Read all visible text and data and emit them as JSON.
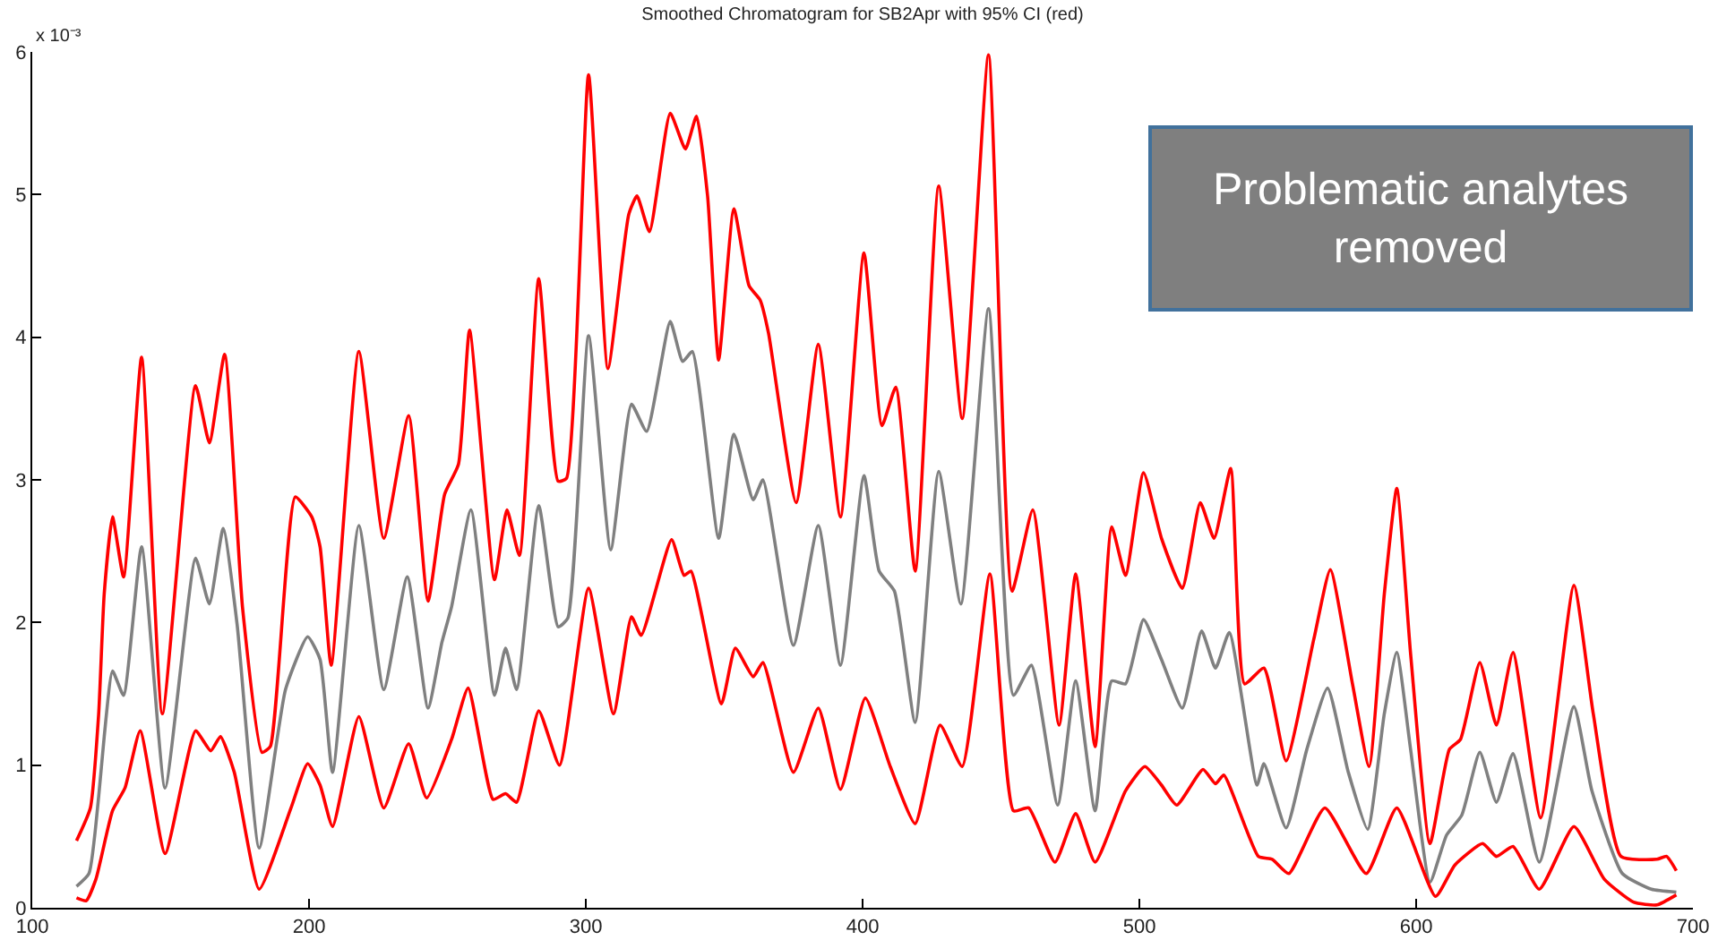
{
  "chart_data": {
    "type": "line",
    "title": "Smoothed Chromatogram for SB2Apr with 95% CI (red)",
    "ylabel": "x 10⁻³",
    "annotations": [
      "Problematic analytes removed"
    ],
    "xlim": [
      100,
      700
    ],
    "xticks": [
      100,
      200,
      300,
      400,
      500,
      600,
      700
    ],
    "ylim": [
      0,
      6
    ],
    "yticks": [
      0,
      1,
      2,
      3,
      4,
      5,
      6
    ],
    "grid": false,
    "line_style": "solid",
    "marker": "none",
    "series": [
      {
        "color": "#ff0000",
        "x": [
          116,
          121,
          124,
          126,
          129,
          133,
          139.5,
          147,
          159,
          164,
          169.5,
          176,
          183,
          186,
          195,
          201,
          204,
          208,
          218,
          227,
          236,
          243,
          249,
          254,
          258,
          267,
          271.5,
          276,
          283,
          290,
          293,
          301,
          308,
          315.5,
          318.5,
          323,
          330.5,
          336,
          340,
          344,
          348,
          353.5,
          359,
          363,
          366,
          376,
          384,
          392,
          400.5,
          407,
          412,
          419,
          427.5,
          436,
          445.5,
          454,
          461.5,
          471,
          477,
          484,
          490,
          495,
          501.5,
          508,
          515.5,
          522,
          527,
          533,
          538,
          545,
          553,
          563,
          569,
          577,
          583,
          588.5,
          593,
          598,
          605,
          612,
          616,
          623,
          629,
          635,
          645,
          657,
          664,
          674,
          687,
          690.5,
          694
        ],
        "values": [
          0.47,
          0.7,
          1.36,
          2.2,
          2.74,
          2.32,
          3.86,
          1.36,
          3.66,
          3.26,
          3.88,
          2.1,
          1.09,
          1.13,
          2.88,
          2.74,
          2.53,
          1.7,
          3.9,
          2.59,
          3.45,
          2.15,
          2.9,
          3.11,
          4.05,
          2.3,
          2.79,
          2.47,
          4.41,
          2.99,
          3.01,
          5.84,
          3.78,
          4.86,
          4.99,
          4.74,
          5.57,
          5.32,
          5.55,
          4.99,
          3.84,
          4.9,
          4.36,
          4.26,
          4.03,
          2.84,
          3.95,
          2.74,
          4.59,
          3.38,
          3.65,
          2.36,
          5.06,
          3.43,
          5.98,
          2.22,
          2.79,
          1.28,
          2.34,
          1.13,
          2.67,
          2.33,
          3.05,
          2.59,
          2.24,
          2.84,
          2.59,
          3.08,
          1.57,
          1.68,
          1.03,
          1.88,
          2.37,
          1.57,
          0.99,
          2.2,
          2.94,
          1.78,
          0.45,
          1.11,
          1.18,
          1.72,
          1.28,
          1.79,
          0.63,
          2.26,
          1.36,
          0.36,
          0.34,
          0.36,
          0.26
        ]
      },
      {
        "color": "#808080",
        "x": [
          116,
          120.5,
          124,
          126,
          129,
          133,
          139.5,
          148,
          159,
          164,
          169,
          174,
          182,
          191.5,
          199.5,
          204,
          208.5,
          218,
          227,
          235.5,
          243,
          248,
          251.5,
          258.5,
          267,
          271,
          275,
          283,
          290,
          293.5,
          301,
          309,
          316.5,
          322,
          330.5,
          335,
          338.5,
          348,
          353.5,
          360.5,
          364,
          375,
          384,
          392,
          400.5,
          406,
          411.5,
          419,
          427.5,
          435.5,
          445.5,
          454.5,
          461,
          470.5,
          477,
          484,
          490,
          495,
          501.5,
          508,
          515.5,
          522.5,
          527.5,
          532.5,
          542.5,
          545,
          553,
          560.5,
          568,
          575.5,
          582.5,
          588.5,
          593,
          598,
          605,
          611,
          616.5,
          623,
          629,
          635,
          644.5,
          657,
          663.5,
          674.5,
          685,
          694
        ],
        "values": [
          0.15,
          0.24,
          0.78,
          1.2,
          1.66,
          1.49,
          2.53,
          0.84,
          2.45,
          2.13,
          2.66,
          1.99,
          0.42,
          1.53,
          1.9,
          1.74,
          0.95,
          2.68,
          1.53,
          2.32,
          1.4,
          1.86,
          2.11,
          2.79,
          1.49,
          1.82,
          1.53,
          2.82,
          1.97,
          2.03,
          4.01,
          2.51,
          3.53,
          3.34,
          4.11,
          3.83,
          3.9,
          2.59,
          3.32,
          2.86,
          3.0,
          1.84,
          2.68,
          1.7,
          3.03,
          2.36,
          2.22,
          1.3,
          3.06,
          2.13,
          4.2,
          1.49,
          1.7,
          0.72,
          1.59,
          0.68,
          1.59,
          1.57,
          2.02,
          1.74,
          1.4,
          1.94,
          1.68,
          1.93,
          0.86,
          1.01,
          0.56,
          1.11,
          1.54,
          0.95,
          0.55,
          1.36,
          1.79,
          1.11,
          0.18,
          0.51,
          0.65,
          1.09,
          0.74,
          1.08,
          0.32,
          1.41,
          0.82,
          0.24,
          0.13,
          0.11
        ]
      },
      {
        "color": "#ff0000",
        "x": [
          116,
          119.5,
          123,
          129,
          133.5,
          139,
          148,
          159,
          164.5,
          168,
          173,
          182,
          193.5,
          199.5,
          204,
          208.5,
          218,
          227,
          236,
          242.5,
          251.5,
          257.5,
          266.5,
          271,
          275,
          283,
          290.5,
          301,
          310,
          316.5,
          320,
          331,
          335.5,
          338,
          349,
          354,
          360.5,
          364,
          375,
          384,
          392,
          401,
          410,
          419,
          428,
          436,
          446,
          454.5,
          460,
          469.5,
          477,
          484,
          495,
          502,
          508,
          513.5,
          523,
          527.5,
          530.5,
          543,
          548,
          554,
          567,
          582,
          593,
          607,
          614,
          624,
          629,
          635,
          644.5,
          657,
          668,
          678.5,
          687,
          694
        ],
        "values": [
          0.07,
          0.05,
          0.2,
          0.68,
          0.84,
          1.24,
          0.38,
          1.24,
          1.1,
          1.2,
          0.95,
          0.13,
          0.7,
          1.01,
          0.86,
          0.57,
          1.34,
          0.7,
          1.15,
          0.77,
          1.18,
          1.54,
          0.76,
          0.8,
          0.74,
          1.38,
          1.0,
          2.24,
          1.36,
          2.04,
          1.91,
          2.58,
          2.33,
          2.36,
          1.43,
          1.82,
          1.62,
          1.72,
          0.95,
          1.4,
          0.83,
          1.47,
          0.99,
          0.59,
          1.28,
          0.99,
          2.34,
          0.68,
          0.7,
          0.32,
          0.66,
          0.32,
          0.82,
          0.99,
          0.86,
          0.72,
          0.97,
          0.87,
          0.93,
          0.36,
          0.34,
          0.24,
          0.7,
          0.24,
          0.7,
          0.08,
          0.3,
          0.45,
          0.36,
          0.43,
          0.13,
          0.57,
          0.2,
          0.04,
          0.02,
          0.09
        ]
      }
    ]
  }
}
